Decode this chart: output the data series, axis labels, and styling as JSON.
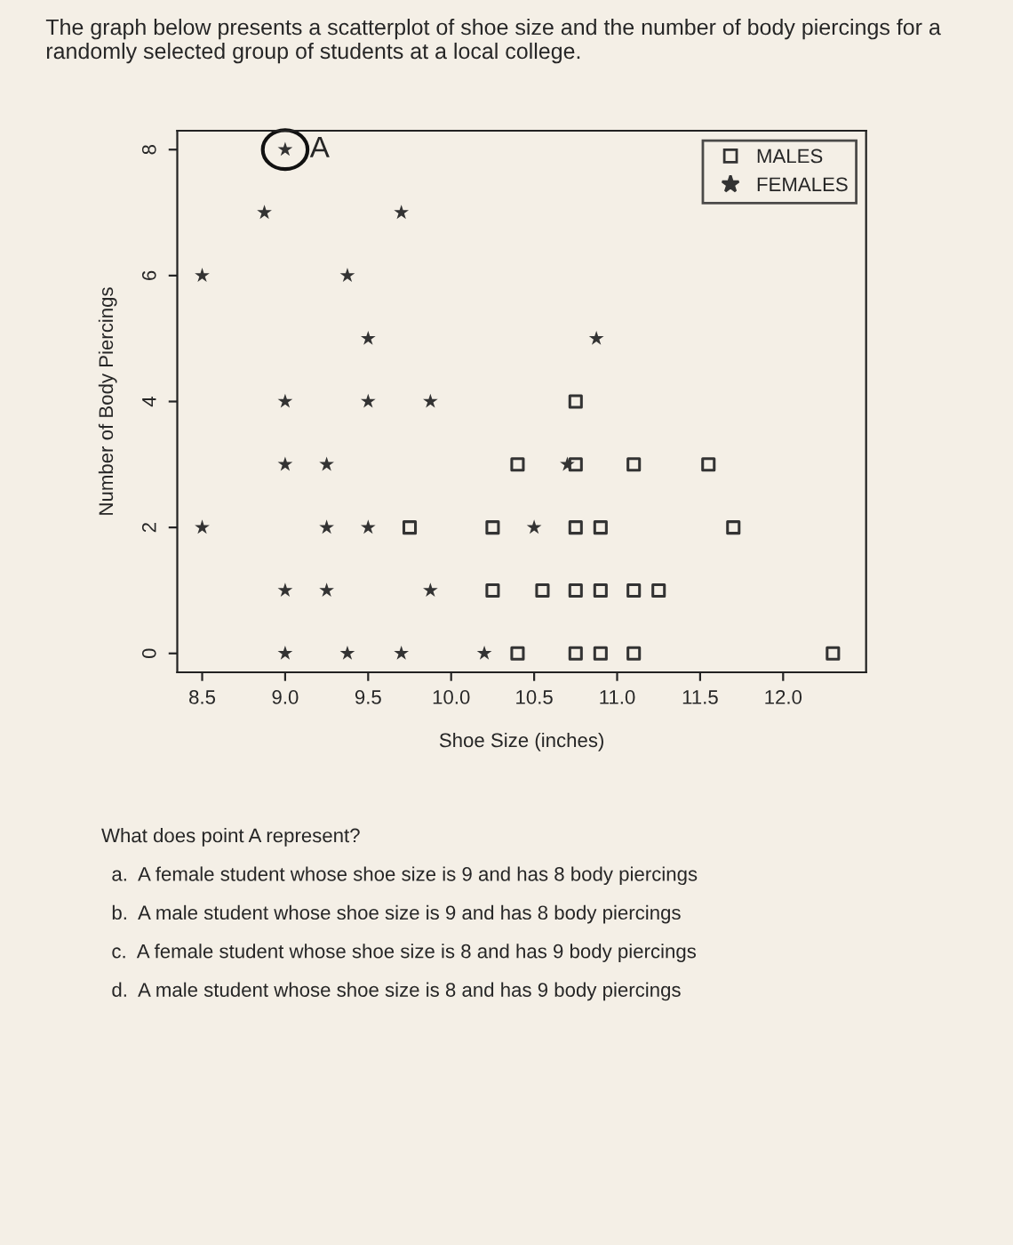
{
  "chart_data": {
    "type": "scatter",
    "title": "The graph below presents a scatterplot of shoe size and the number of body piercings for a randomly selected group of students at a local college.",
    "xlabel": "Shoe Size (inches)",
    "ylabel": "Number of Body Piercings",
    "xlim": [
      8.35,
      12.5
    ],
    "xticks": [
      8.5,
      {
        "value": 9,
        "label": "9.0"
      },
      9.5,
      {
        "value": 10,
        "label": "10.0"
      },
      10.5,
      {
        "value": 11,
        "label": "11.0"
      },
      11.5,
      {
        "value": 12,
        "label": "12.0"
      }
    ],
    "ylim": [
      -0.3,
      8.3
    ],
    "yticks": [
      0,
      2,
      4,
      6,
      8
    ],
    "grid": false,
    "legend": "top right",
    "series": [
      {
        "name": "MALES",
        "color": "#333333",
        "marker": "square",
        "x": [
          10.75,
          10.4,
          10.75,
          11.1,
          11.55,
          9.75,
          10.25,
          10.75,
          10.9,
          11.7,
          10.25,
          10.55,
          10.75,
          10.9,
          11.1,
          11.25,
          10.4,
          10.75,
          10.9,
          11.1,
          12.3
        ],
        "values": [
          4,
          3,
          3,
          3,
          3,
          2,
          2,
          2,
          2,
          2,
          1,
          1,
          1,
          1,
          1,
          1,
          0,
          0,
          0,
          0,
          0
        ]
      },
      {
        "name": "FEMALES",
        "color": "#333333",
        "marker": "star",
        "x": [
          9.0,
          8.875,
          9.7,
          8.5,
          9.375,
          9.5,
          10.875,
          9.0,
          9.5,
          9.875,
          9.0,
          9.25,
          10.7,
          8.5,
          9.25,
          9.5,
          10.5,
          9.0,
          9.25,
          9.875,
          9.0,
          9.375,
          9.7,
          10.2
        ],
        "values": [
          8,
          7,
          7,
          6,
          6,
          5,
          5,
          4,
          4,
          4,
          3,
          3,
          3,
          2,
          2,
          2,
          2,
          1,
          1,
          1,
          0,
          0,
          0,
          0
        ]
      }
    ],
    "annotations": [
      {
        "text": "A",
        "x": 9.0,
        "y": 8
      },
      "What does point A represent?",
      "a.  A female student whose shoe size is 9 and has 8 body piercings",
      "b.  A male student whose shoe size is 9 and has 8 body piercings",
      "c.  A female student whose shoe size is 8 and has 9 body piercings",
      "d.  A male student whose shoe size is 8 and has 9 body piercings"
    ]
  }
}
